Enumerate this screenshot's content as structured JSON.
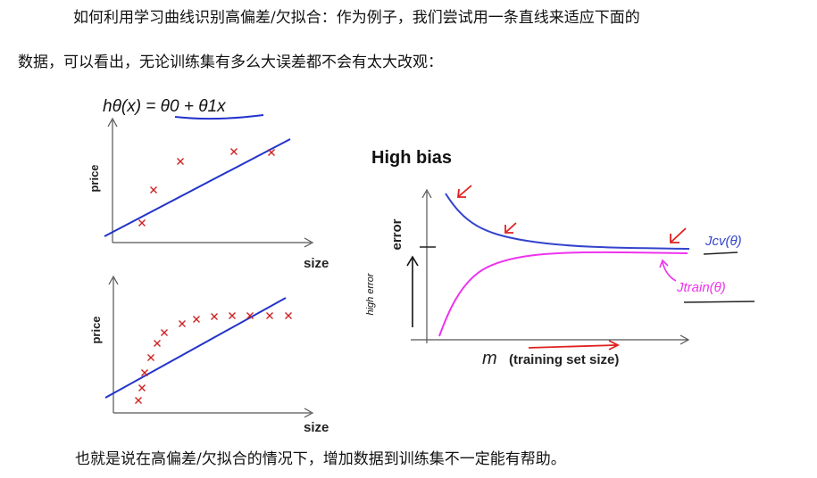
{
  "text": {
    "intro_line1": "如何利用学习曲线识别高偏差/欠拟合：作为例子，我们尝试用一条直线来适应下面的",
    "intro_line2": "数据，可以看出，无论训练集有多么大误差都不会有太大改观：",
    "conclusion": "也就是说在高偏差/欠拟合的情况下，增加数据到训练集不一定能有帮助。"
  },
  "figure": {
    "hypothesis": "hθ(x) = θ0 + θ1x",
    "top_plot": {
      "ylabel": "price",
      "xlabel": "size"
    },
    "bottom_plot": {
      "ylabel": "price",
      "xlabel": "size"
    },
    "curve_plot": {
      "title": "High bias",
      "ylabel": "error",
      "xlabel_var": "m",
      "xlabel_text": "(training set size)",
      "cv_label": "Jcv(θ)",
      "train_label": "Jtrain(θ)",
      "hand_note": "high error"
    },
    "colors": {
      "fit_line": "#2233cc",
      "cv_curve": "#3344cc",
      "train_curve": "#ee33ee",
      "annotation": "#e02020"
    }
  }
}
